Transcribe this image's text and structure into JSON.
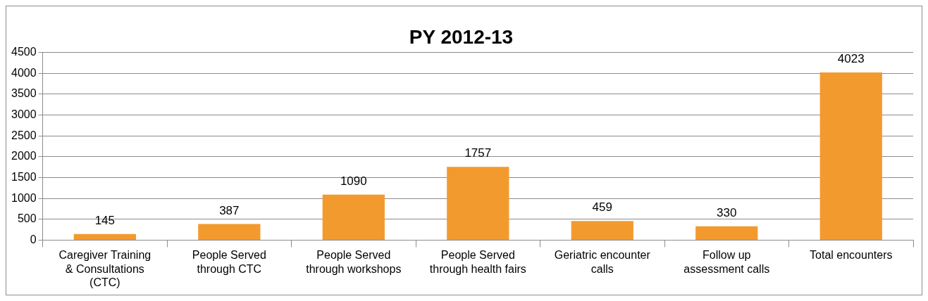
{
  "chart_data": {
    "type": "bar",
    "title": "PY 2012-13",
    "categories": [
      "Caregiver Training & Consultations (CTC)",
      "People Served through CTC",
      "People Served through workshops",
      "People Served through health fairs",
      "Geriatric encounter calls",
      "Follow up assessment calls",
      "Total encounters"
    ],
    "values": [
      145,
      387,
      1090,
      1757,
      459,
      330,
      4023
    ],
    "color": "#f39a2e",
    "ylim": [
      0,
      4500
    ],
    "yticks": [
      0,
      500,
      1000,
      1500,
      2000,
      2500,
      3000,
      3500,
      4000,
      4500
    ],
    "grid": "y",
    "legend": false,
    "data_labels": true
  }
}
